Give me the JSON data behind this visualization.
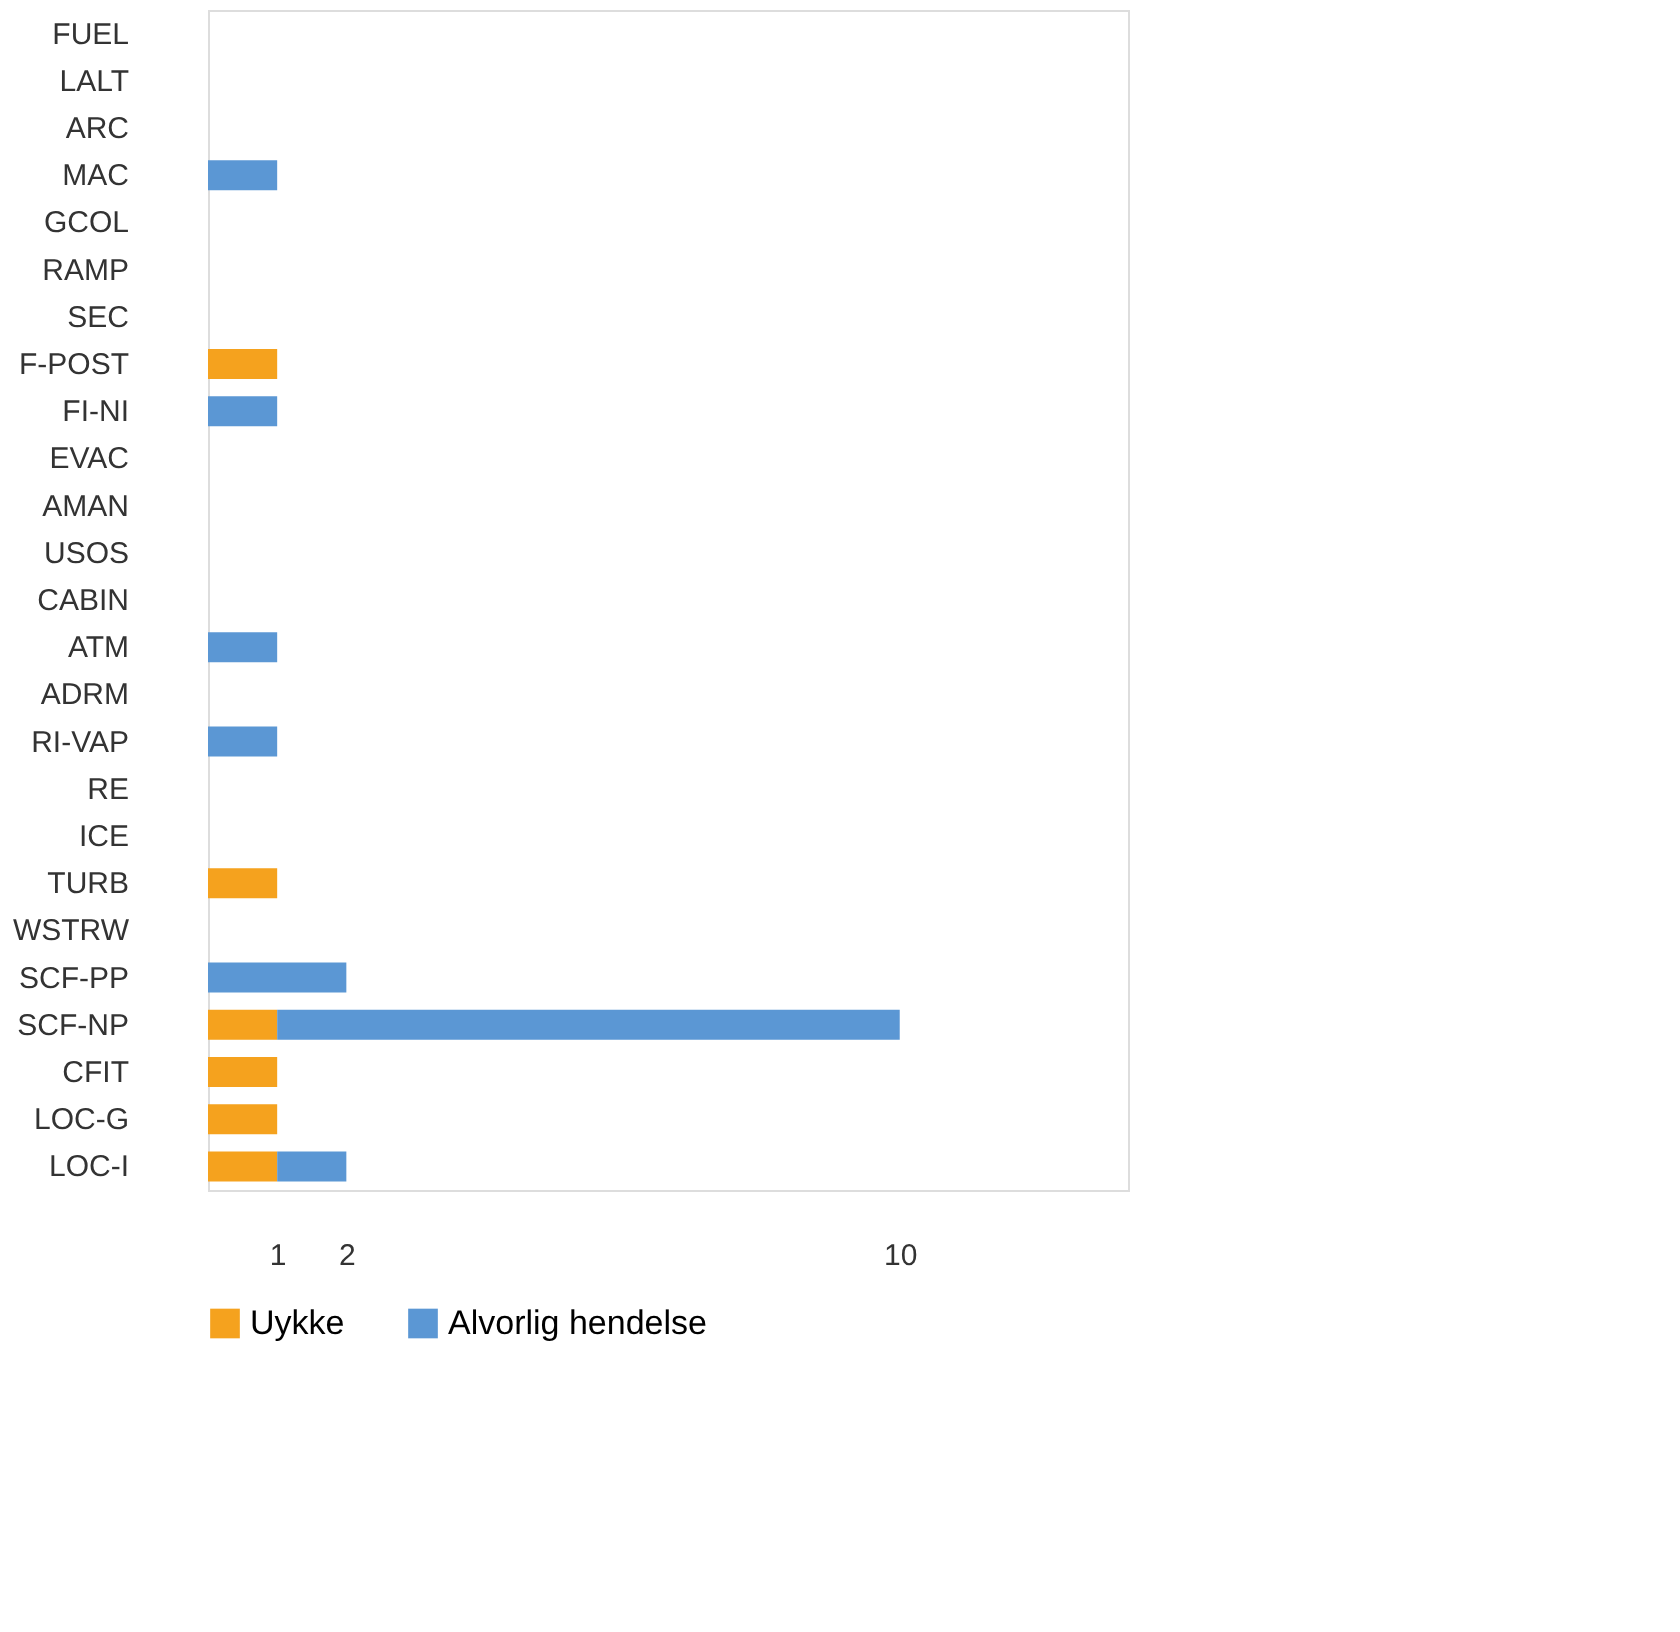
{
  "chart_data": {
    "type": "bar",
    "orientation": "horizontal",
    "stacked": true,
    "categories": [
      "FUEL",
      "LALT",
      "ARC",
      "MAC",
      "GCOL",
      "RAMP",
      "SEC",
      "F-POST",
      "FI-NI",
      "EVAC",
      "AMAN",
      "USOS",
      "CABIN",
      "ATM",
      "ADRM",
      "RI-VAP",
      "RE",
      "ICE",
      "TURB",
      "WSTRW",
      "SCF-PP",
      "SCF-NP",
      "CFIT",
      "LOC-G",
      "LOC-I"
    ],
    "series": [
      {
        "name": "Uykke",
        "color": "#f5a21e",
        "values": [
          0,
          0,
          0,
          0,
          0,
          0,
          0,
          1,
          0,
          0,
          0,
          0,
          0,
          0,
          0,
          0,
          0,
          0,
          1,
          0,
          0,
          1,
          1,
          1,
          1
        ]
      },
      {
        "name": "Alvorlig hendelse",
        "color": "#5b97d4",
        "values": [
          0,
          0,
          0,
          1,
          0,
          0,
          0,
          0,
          1,
          0,
          0,
          0,
          0,
          1,
          0,
          1,
          0,
          0,
          0,
          0,
          2,
          9,
          0,
          0,
          1
        ]
      }
    ],
    "xlim": [
      0,
      13.3
    ],
    "xticks": [
      1,
      2,
      10
    ],
    "grid": false,
    "legend": "bottom"
  }
}
